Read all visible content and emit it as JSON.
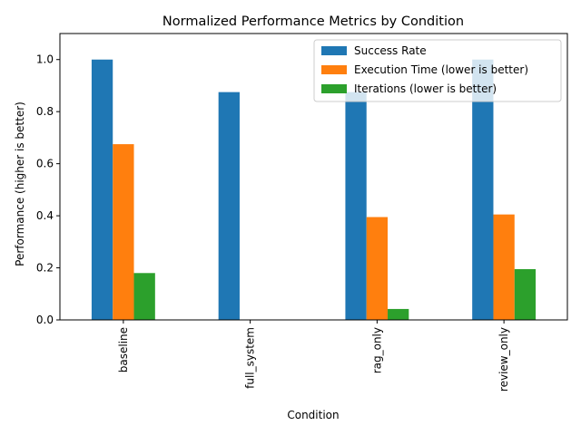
{
  "chart_data": {
    "type": "bar",
    "title": "Normalized Performance Metrics by Condition",
    "xlabel": "Condition",
    "ylabel": "Performance (higher is better)",
    "categories": [
      "baseline",
      "full_system",
      "rag_only",
      "review_only"
    ],
    "ylim": [
      0,
      1.1
    ],
    "yticks": [
      0.0,
      0.2,
      0.4,
      0.6,
      0.8,
      1.0
    ],
    "ytick_labels": [
      "0.0",
      "0.2",
      "0.4",
      "0.6",
      "0.8",
      "1.0"
    ],
    "grid": false,
    "legend_position": "top-right",
    "series": [
      {
        "name": "Success Rate",
        "color": "#1f77b4",
        "values": [
          1.0,
          0.875,
          0.875,
          1.0
        ]
      },
      {
        "name": "Execution Time (lower is better)",
        "color": "#ff7f0e",
        "values": [
          0.675,
          0.0,
          0.395,
          0.405
        ]
      },
      {
        "name": "Iterations (lower is better)",
        "color": "#2ca02c",
        "values": [
          0.18,
          0.0,
          0.042,
          0.195
        ]
      }
    ]
  }
}
